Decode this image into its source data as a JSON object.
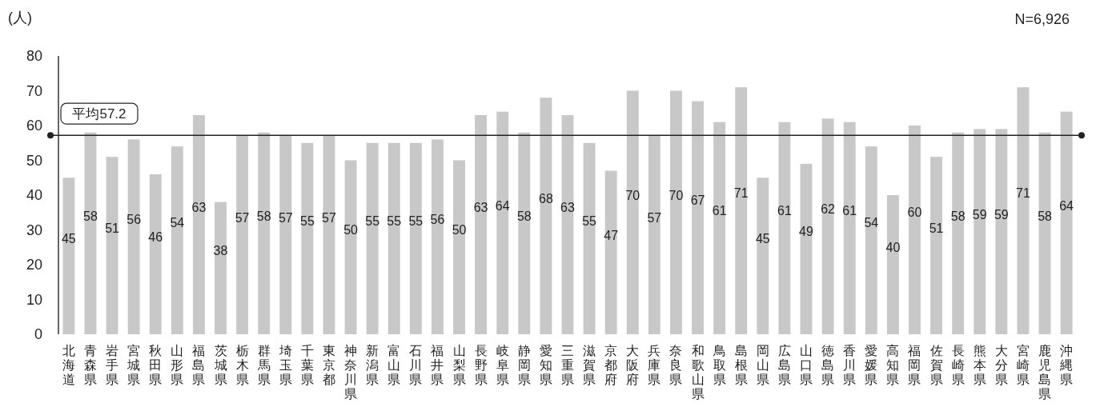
{
  "chart_data": {
    "type": "bar",
    "ylabel": "(人)",
    "annotations": [
      "N=6,926"
    ],
    "categories": [
      "北海道",
      "青森県",
      "岩手県",
      "宮城県",
      "秋田県",
      "山形県",
      "福島県",
      "茨城県",
      "栃木県",
      "群馬県",
      "埼玉県",
      "千葉県",
      "東京都",
      "神奈川県",
      "新潟県",
      "富山県",
      "石川県",
      "福井県",
      "山梨県",
      "長野県",
      "岐阜県",
      "静岡県",
      "愛知県",
      "三重県",
      "滋賀県",
      "京都府",
      "大阪府",
      "兵庫県",
      "奈良県",
      "和歌山県",
      "鳥取県",
      "島根県",
      "岡山県",
      "広島県",
      "山口県",
      "徳島県",
      "香川県",
      "愛媛県",
      "高知県",
      "福岡県",
      "佐賀県",
      "長崎県",
      "熊本県",
      "大分県",
      "宮崎県",
      "鹿児島県",
      "沖縄県"
    ],
    "values": [
      45,
      58,
      51,
      56,
      46,
      54,
      63,
      38,
      57,
      58,
      57,
      55,
      57,
      50,
      55,
      55,
      55,
      56,
      50,
      63,
      64,
      58,
      68,
      63,
      55,
      47,
      70,
      57,
      70,
      67,
      61,
      71,
      45,
      61,
      49,
      62,
      61,
      54,
      40,
      60,
      51,
      58,
      59,
      59,
      71,
      58,
      64
    ],
    "color": "#c8c8c8",
    "ylim": [
      0,
      80
    ],
    "yticks": [
      0,
      10,
      20,
      30,
      40,
      50,
      60,
      70,
      80
    ],
    "data_labels": true,
    "ref_lines": [
      {
        "axis": "y",
        "value": 57.2,
        "label": "平均57.2",
        "color": "#222222"
      }
    ]
  }
}
